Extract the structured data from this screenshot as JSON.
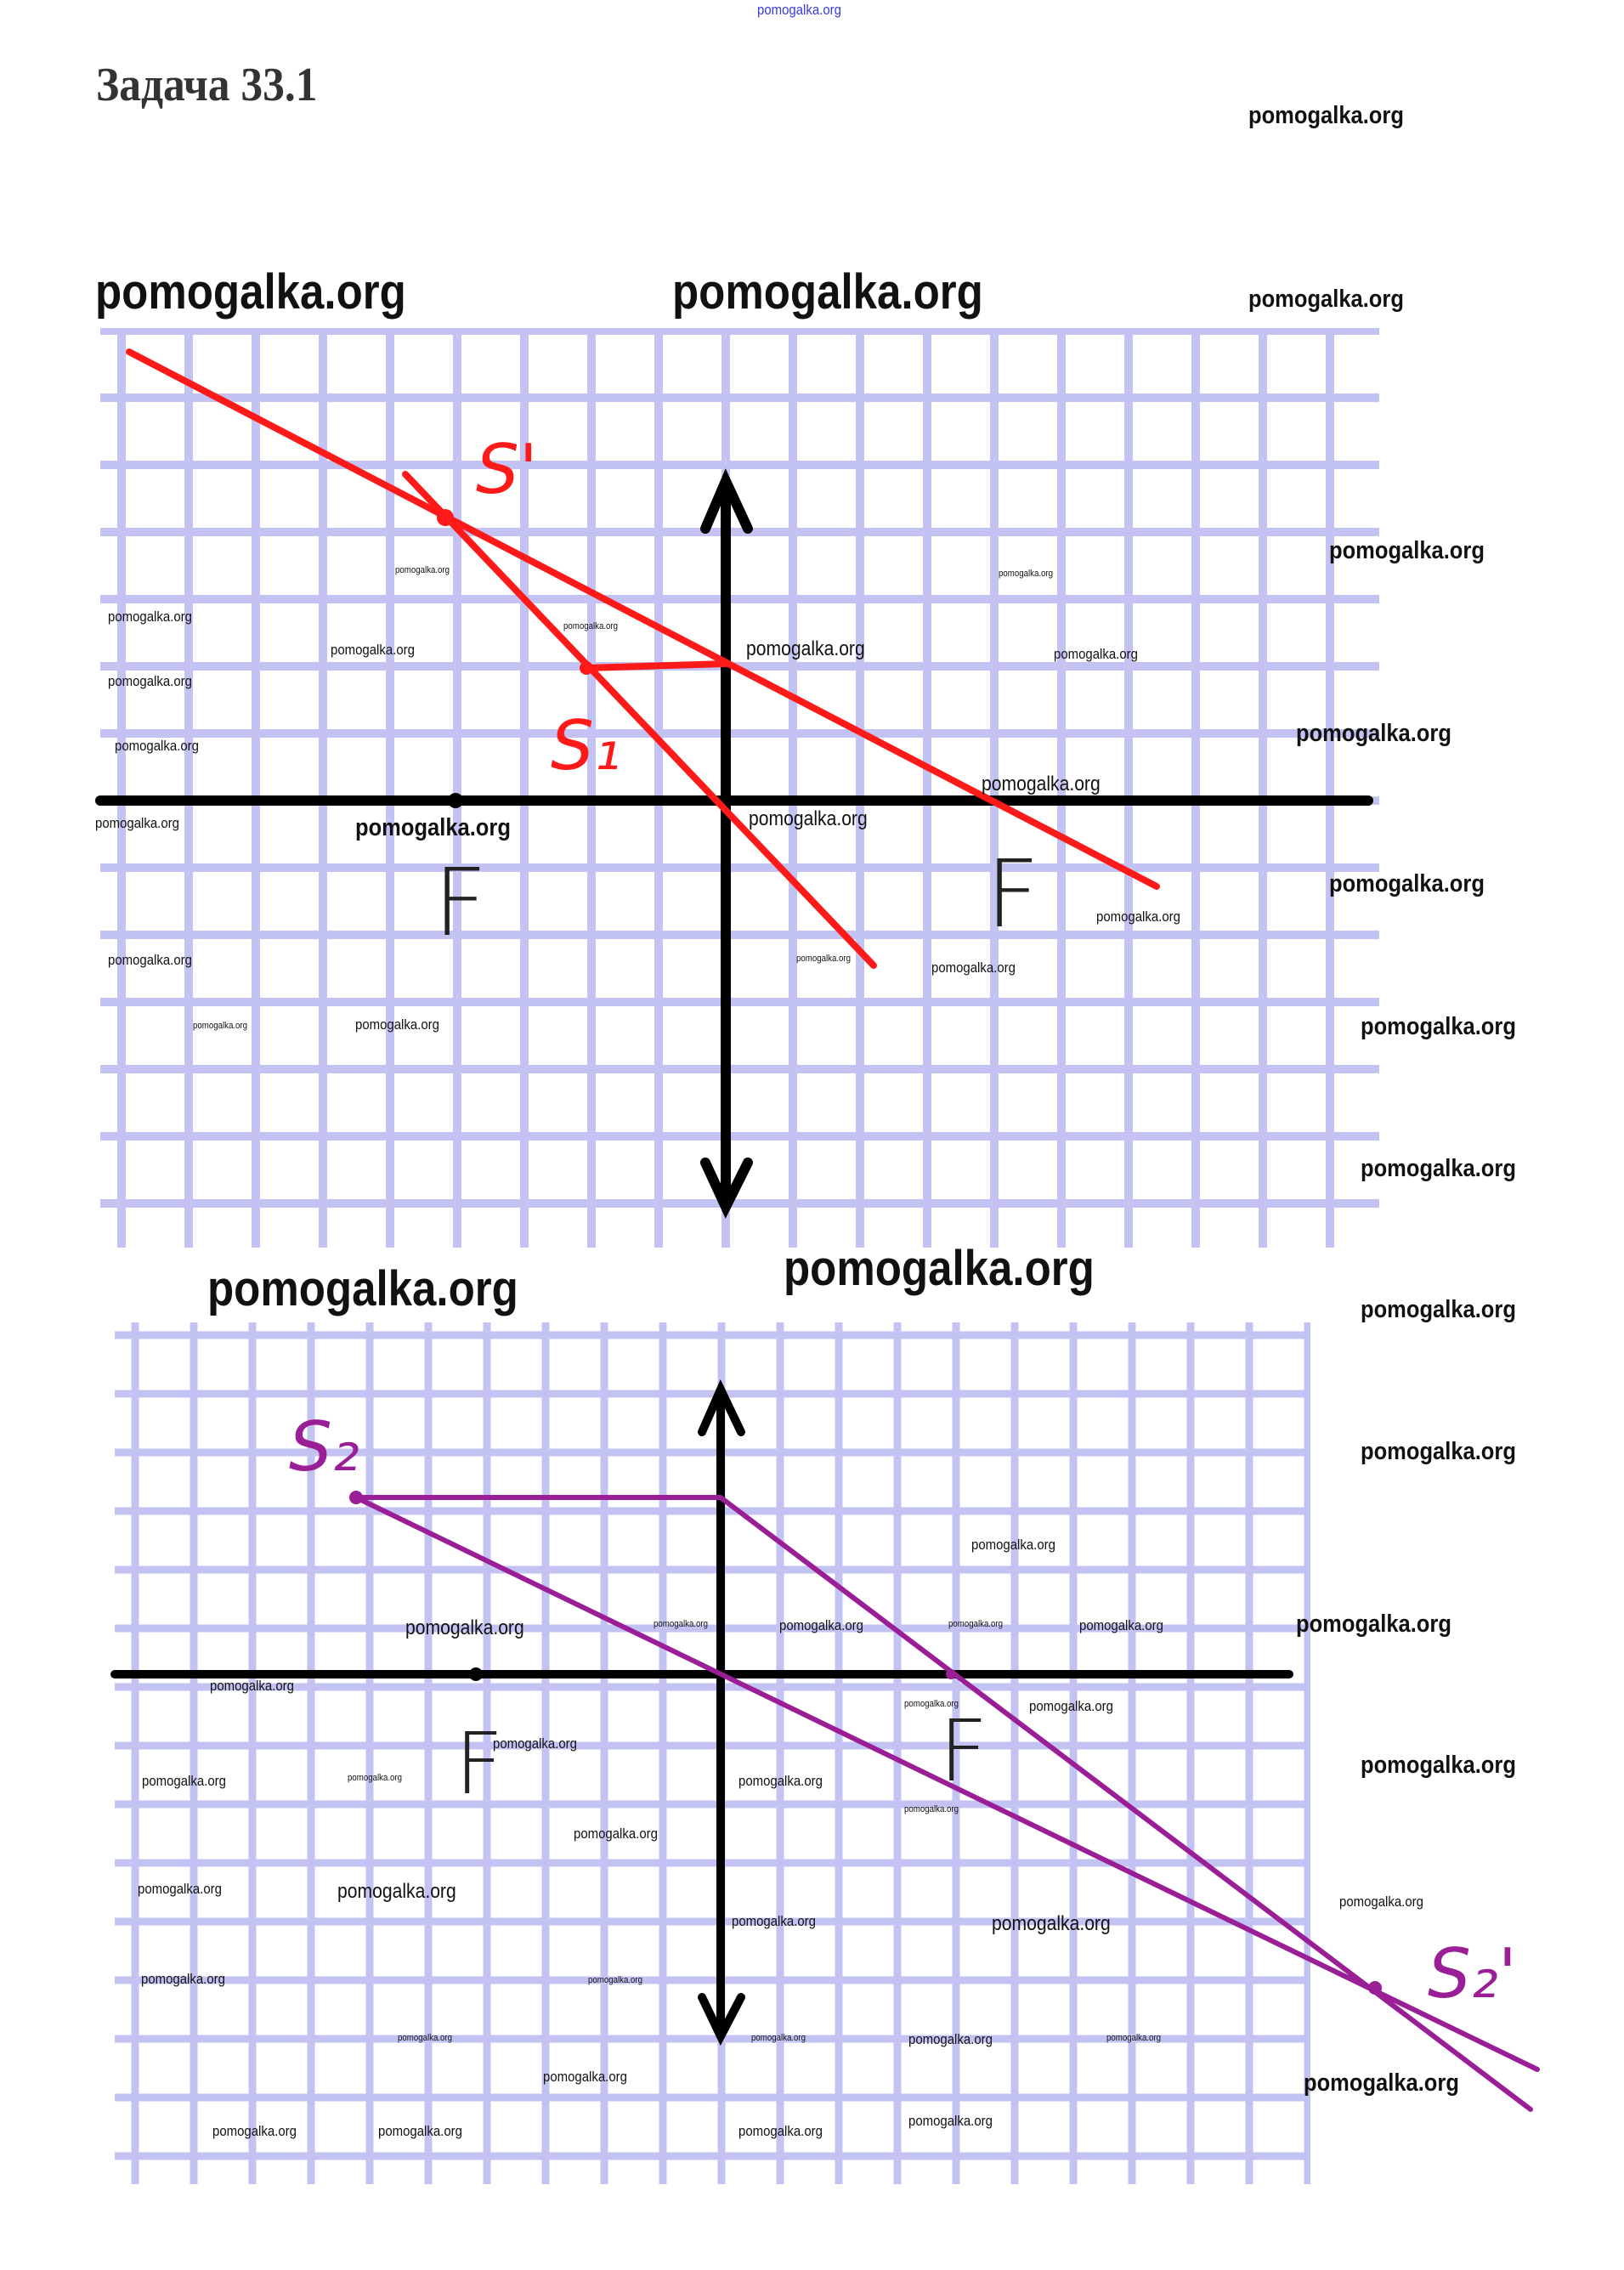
{
  "title": "Задача 33.1",
  "watermark_text": "pomogalka.org",
  "diagram1": {
    "color": "#ff1a1a",
    "labels": {
      "image": "S'",
      "source": "S₁",
      "focus_left": "F",
      "focus_right": "F"
    }
  },
  "diagram2": {
    "color": "#9a1e96",
    "labels": {
      "source": "S₂",
      "image": "S₂'",
      "focus_left": "F",
      "focus_right": "F"
    }
  },
  "grid_color": "#c3c3f3"
}
